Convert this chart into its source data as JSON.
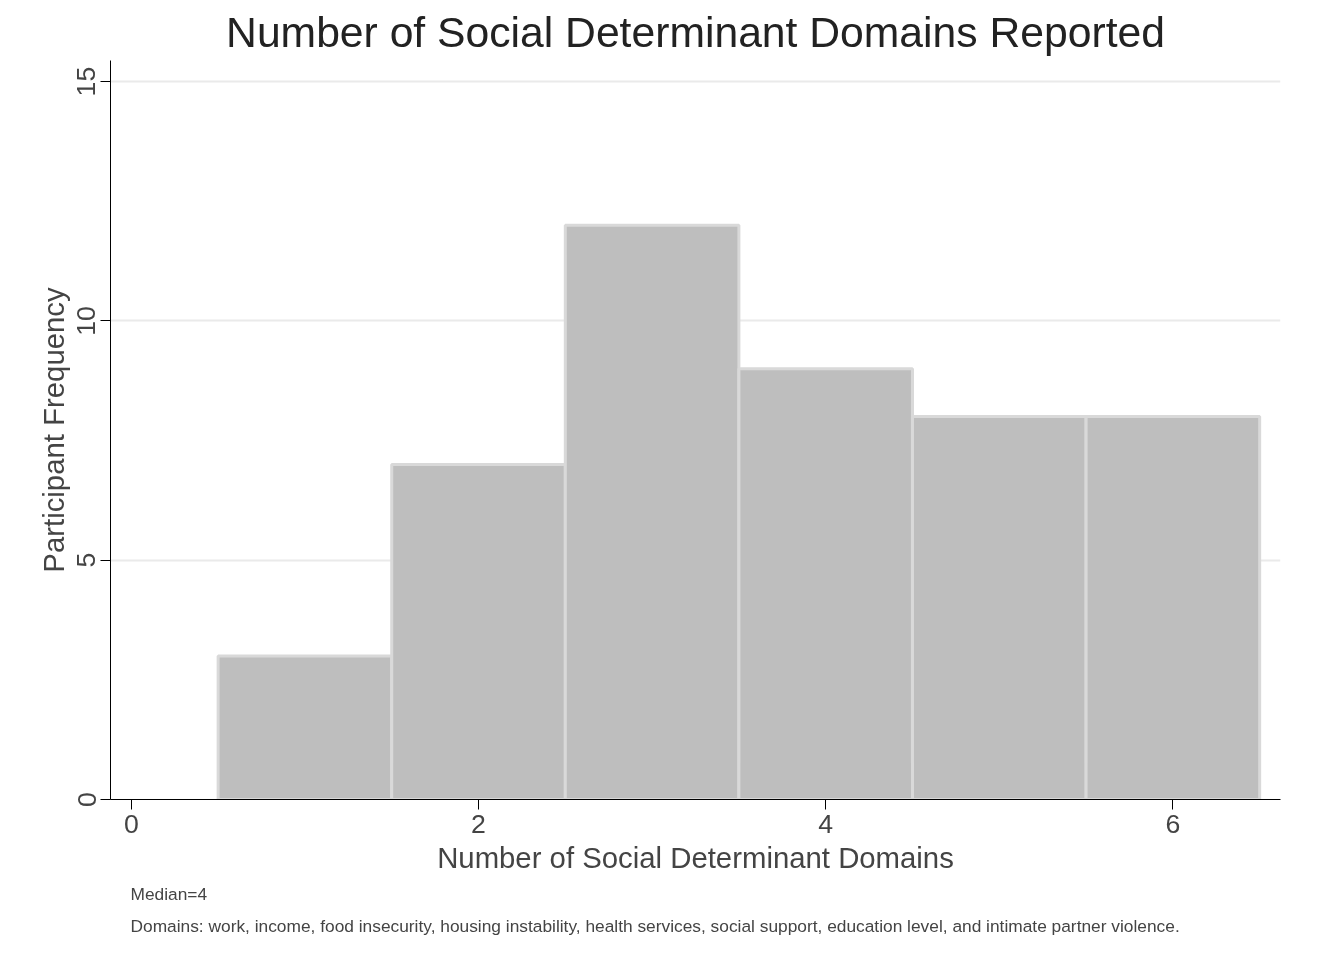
{
  "chart_data": {
    "type": "histogram",
    "title": "Number of Social Determinant Domains Reported",
    "xlabel": "Number of Social Determinant Domains",
    "ylabel": "Participant Frequency",
    "bins": [
      0.5,
      1.5,
      2.5,
      3.5,
      4.5,
      5.5,
      6.5
    ],
    "values": [
      3,
      7,
      12,
      9,
      8,
      8
    ],
    "color": "#bebebe",
    "xlim": [
      -0.12,
      6.62
    ],
    "ylim": [
      0,
      15.44
    ],
    "xticks": [
      0,
      2,
      4,
      6
    ],
    "yticks": [
      0,
      5,
      10,
      15
    ],
    "grid": "y",
    "annotations": [
      "Median=4",
      "Domains: work, income, food insecurity, housing instability, health services, social support, education level, and intimate partner violence."
    ]
  }
}
